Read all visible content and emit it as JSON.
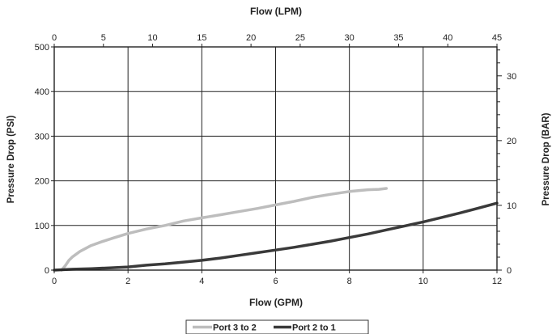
{
  "chart_data": {
    "type": "line",
    "title": "",
    "xlabel": "Flow (GPM)",
    "x2label": "Flow (LPM)",
    "ylabel": "Pressure Drop (PSI)",
    "y2label": "Pressure Drop (BAR)",
    "xlim": [
      0,
      12
    ],
    "x2lim": [
      0,
      45
    ],
    "ylim": [
      0,
      500
    ],
    "y2lim": [
      0,
      34.47
    ],
    "x_ticks": [
      "0",
      "2",
      "4",
      "6",
      "8",
      "10",
      "12"
    ],
    "x2_ticks": [
      "0",
      "5",
      "10",
      "15",
      "20",
      "25",
      "30",
      "35",
      "40",
      "45"
    ],
    "y_ticks": [
      "0",
      "100",
      "200",
      "300",
      "400",
      "500"
    ],
    "y2_ticks": [
      "0",
      "10",
      "20",
      "30"
    ],
    "grid": true,
    "legend_position": "bottom",
    "series": [
      {
        "name": "Port 3 to 2",
        "color": "#bdbdbd",
        "x": [
          0.2,
          0.3,
          0.4,
          0.5,
          0.7,
          1.0,
          1.3,
          1.6,
          2.0,
          2.5,
          3.0,
          3.5,
          4.0,
          4.5,
          5.0,
          5.5,
          6.0,
          6.5,
          7.0,
          7.5,
          8.0,
          8.5,
          8.8,
          9.0
        ],
        "y": [
          0,
          10,
          22,
          30,
          42,
          55,
          64,
          72,
          82,
          92,
          100,
          110,
          117,
          124,
          131,
          138,
          146,
          154,
          163,
          170,
          176,
          180,
          181,
          183
        ]
      },
      {
        "name": "Port 2 to 1",
        "color": "#3a3a3a",
        "x": [
          0,
          0.5,
          1,
          1.5,
          2,
          2.5,
          3,
          3.5,
          4,
          4.5,
          5,
          5.5,
          6,
          6.5,
          7,
          7.5,
          8,
          8.5,
          9,
          9.5,
          10,
          10.5,
          11,
          11.5,
          12
        ],
        "y": [
          0,
          2,
          3,
          5,
          7,
          11,
          14,
          18,
          22,
          27,
          33,
          39,
          45,
          51,
          58,
          65,
          73,
          81,
          90,
          99,
          108,
          118,
          128,
          139,
          150
        ]
      }
    ]
  }
}
